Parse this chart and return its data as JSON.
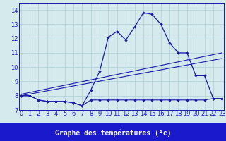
{
  "xlabel": "Graphe des températures (°c)",
  "hours": [
    0,
    1,
    2,
    3,
    4,
    5,
    6,
    7,
    8,
    9,
    10,
    11,
    12,
    13,
    14,
    15,
    16,
    17,
    18,
    19,
    20,
    21,
    22,
    23
  ],
  "temp": [
    8.0,
    8.0,
    7.7,
    7.6,
    7.6,
    7.6,
    7.5,
    7.3,
    8.4,
    9.7,
    12.1,
    12.5,
    11.9,
    12.8,
    13.8,
    13.7,
    13.0,
    11.7,
    11.0,
    11.0,
    9.4,
    9.4,
    7.8,
    7.8
  ],
  "dew": [
    8.0,
    8.0,
    7.7,
    7.6,
    7.6,
    7.6,
    7.5,
    7.3,
    7.7,
    7.7,
    7.7,
    7.7,
    7.7,
    7.7,
    7.7,
    7.7,
    7.7,
    7.7,
    7.7,
    7.7,
    7.7,
    7.7,
    7.8,
    7.8
  ],
  "trend1_x": [
    0,
    23
  ],
  "trend1_y": [
    8.1,
    11.0
  ],
  "trend2_x": [
    0,
    23
  ],
  "trend2_y": [
    8.0,
    10.6
  ],
  "ylim": [
    7.0,
    14.5
  ],
  "xlim": [
    0,
    23
  ],
  "yticks": [
    7,
    8,
    9,
    10,
    11,
    12,
    13,
    14
  ],
  "xticks": [
    0,
    1,
    2,
    3,
    4,
    5,
    6,
    7,
    8,
    9,
    10,
    11,
    12,
    13,
    14,
    15,
    16,
    17,
    18,
    19,
    20,
    21,
    22,
    23
  ],
  "bg_color": "#d4eaed",
  "grid_color": "#b0ced4",
  "line_color": "#1a1aaa",
  "tick_label_color": "#1a1acc",
  "xlabel_color": "#1a1acc",
  "bar_color": "#1a1acc",
  "xlabel_fontsize": 7.0,
  "tick_fontsize": 6.0
}
